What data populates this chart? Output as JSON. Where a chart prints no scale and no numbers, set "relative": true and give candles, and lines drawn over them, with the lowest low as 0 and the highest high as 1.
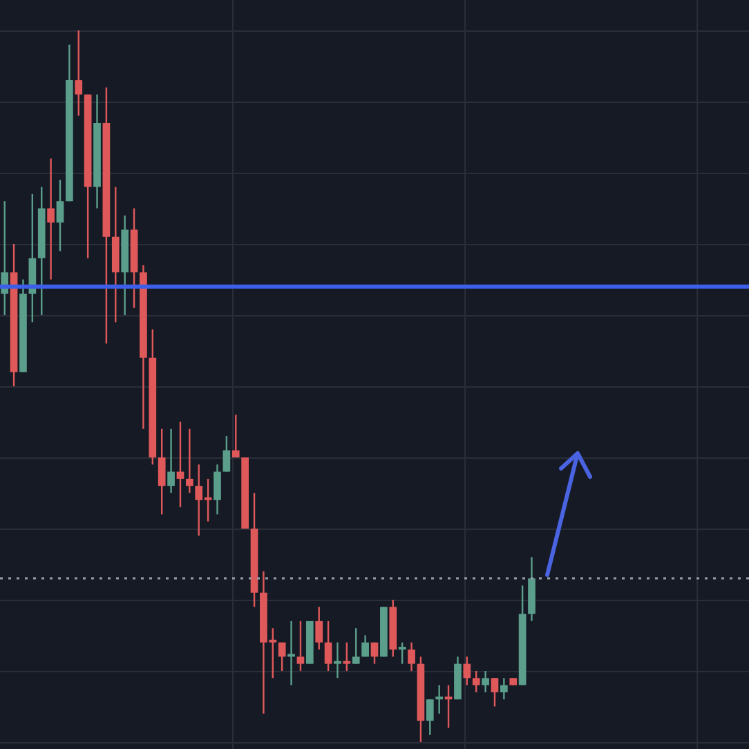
{
  "chart_data": {
    "type": "candlestick",
    "relative": true,
    "grid": true,
    "legend": false,
    "categories": [
      null,
      null,
      null,
      null,
      null,
      null,
      null,
      null,
      null,
      null,
      null,
      null,
      null,
      null,
      null,
      null,
      null,
      null,
      null,
      null,
      null,
      null,
      null,
      null,
      null,
      null,
      null,
      null,
      null,
      null,
      null,
      null,
      null,
      null,
      null,
      null,
      null,
      null,
      null,
      null,
      null,
      null,
      null,
      null,
      null,
      null,
      null,
      null,
      null,
      null,
      null,
      null,
      null,
      null,
      null,
      null,
      null,
      null,
      null,
      null,
      null,
      null,
      null,
      null,
      null,
      null,
      null,
      null,
      null,
      null,
      null,
      null,
      null,
      null,
      null,
      null,
      null,
      null,
      null,
      null,
      null
    ],
    "ohlc": [
      [
        0.63,
        0.76,
        0.6,
        0.66
      ],
      [
        0.66,
        0.7,
        0.5,
        0.52
      ],
      [
        0.52,
        0.65,
        0.52,
        0.63
      ],
      [
        0.63,
        0.77,
        0.59,
        0.68
      ],
      [
        0.68,
        0.78,
        0.6,
        0.75
      ],
      [
        0.75,
        0.82,
        0.65,
        0.73
      ],
      [
        0.73,
        0.79,
        0.69,
        0.76
      ],
      [
        0.76,
        0.98,
        0.76,
        0.93
      ],
      [
        0.93,
        1.0,
        0.88,
        0.91
      ],
      [
        0.91,
        0.91,
        0.68,
        0.78
      ],
      [
        0.78,
        0.91,
        0.75,
        0.87
      ],
      [
        0.87,
        0.92,
        0.56,
        0.71
      ],
      [
        0.71,
        0.78,
        0.59,
        0.66
      ],
      [
        0.66,
        0.74,
        0.6,
        0.72
      ],
      [
        0.72,
        0.75,
        0.61,
        0.66
      ],
      [
        0.66,
        0.67,
        0.44,
        0.54
      ],
      [
        0.54,
        0.58,
        0.39,
        0.4
      ],
      [
        0.4,
        0.44,
        0.32,
        0.36
      ],
      [
        0.36,
        0.44,
        0.35,
        0.38
      ],
      [
        0.38,
        0.45,
        0.33,
        0.37
      ],
      [
        0.37,
        0.44,
        0.35,
        0.36
      ],
      [
        0.36,
        0.39,
        0.29,
        0.34
      ],
      [
        0.34,
        0.37,
        0.31,
        0.34
      ],
      [
        0.34,
        0.39,
        0.32,
        0.38
      ],
      [
        0.38,
        0.43,
        0.38,
        0.41
      ],
      [
        0.41,
        0.46,
        0.4,
        0.4
      ],
      [
        0.4,
        0.4,
        0.3,
        0.3
      ],
      [
        0.3,
        0.35,
        0.19,
        0.21
      ],
      [
        0.21,
        0.24,
        0.04,
        0.14
      ],
      [
        0.14,
        0.16,
        0.09,
        0.14
      ],
      [
        0.14,
        0.14,
        0.1,
        0.12
      ],
      [
        0.12,
        0.17,
        0.08,
        0.12
      ],
      [
        0.12,
        0.17,
        0.1,
        0.11
      ],
      [
        0.11,
        0.17,
        0.11,
        0.17
      ],
      [
        0.17,
        0.19,
        0.13,
        0.14
      ],
      [
        0.14,
        0.17,
        0.1,
        0.11
      ],
      [
        0.11,
        0.14,
        0.09,
        0.11
      ],
      [
        0.11,
        0.14,
        0.1,
        0.11
      ],
      [
        0.11,
        0.16,
        0.11,
        0.12
      ],
      [
        0.12,
        0.15,
        0.12,
        0.14
      ],
      [
        0.14,
        0.14,
        0.11,
        0.12
      ],
      [
        0.12,
        0.19,
        0.12,
        0.19
      ],
      [
        0.19,
        0.2,
        0.12,
        0.13
      ],
      [
        0.13,
        0.14,
        0.11,
        0.13
      ],
      [
        0.13,
        0.14,
        0.1,
        0.11
      ],
      [
        0.11,
        0.12,
        0,
        0.03
      ],
      [
        0.03,
        0.06,
        0.01,
        0.06
      ],
      [
        0.06,
        0.08,
        0.04,
        0.06
      ],
      [
        0.06,
        0.08,
        0.02,
        0.06
      ],
      [
        0.06,
        0.12,
        0.06,
        0.11
      ],
      [
        0.11,
        0.12,
        0.08,
        0.09
      ],
      [
        0.09,
        0.1,
        0.07,
        0.08
      ],
      [
        0.08,
        0.1,
        0.07,
        0.09
      ],
      [
        0.09,
        0.09,
        0.05,
        0.07
      ],
      [
        0.07,
        0.09,
        0.06,
        0.08
      ],
      [
        0.09,
        0.09,
        0.08,
        0.08
      ],
      [
        0.08,
        0.22,
        0.08,
        0.18
      ],
      [
        0.18,
        0.26,
        0.17,
        0.23
      ],
      null,
      null,
      null,
      null,
      null,
      null,
      null,
      null,
      null,
      null,
      null,
      null,
      null,
      null,
      null,
      null,
      null,
      null,
      null,
      null,
      null,
      null,
      null
    ],
    "colors": [
      "#5b9e8b",
      "#e0595a",
      "#5b9e8b",
      "#5b9e8b",
      "#5b9e8b",
      "#e0595a",
      "#5b9e8b",
      "#5b9e8b",
      "#e0595a",
      "#e0595a",
      "#5b9e8b",
      "#e0595a",
      "#e0595a",
      "#5b9e8b",
      "#e0595a",
      "#e0595a",
      "#e0595a",
      "#e0595a",
      "#5b9e8b",
      "#e0595a",
      "#e0595a",
      "#e0595a",
      "#e0595a",
      "#5b9e8b",
      "#5b9e8b",
      "#e0595a",
      "#e0595a",
      "#e0595a",
      "#e0595a",
      "#e0595a",
      "#e0595a",
      "#5b9e8b",
      "#e0595a",
      "#5b9e8b",
      "#e0595a",
      "#e0595a",
      "#5b9e8b",
      "#e0595a",
      "#5b9e8b",
      "#5b9e8b",
      "#e0595a",
      "#5b9e8b",
      "#e0595a",
      "#5b9e8b",
      "#e0595a",
      "#e0595a",
      "#5b9e8b",
      "#5b9e8b",
      "#e0595a",
      "#5b9e8b",
      "#e0595a",
      "#e0595a",
      "#5b9e8b",
      "#e0595a",
      "#5b9e8b",
      "#e0595a",
      "#5b9e8b",
      "#5b9e8b",
      null,
      null,
      null,
      null,
      null,
      null,
      null,
      null,
      null,
      null,
      null,
      null,
      null,
      null,
      null,
      null,
      null,
      null,
      null,
      null,
      null,
      null,
      null
    ],
    "ref_lines": [
      {
        "axis": "y",
        "value": 0.64,
        "color": "#3d5ee6",
        "line_style": "solid"
      },
      {
        "axis": "y",
        "value": 0.23,
        "color": "#9aa0ab",
        "line_style": "dotted"
      }
    ]
  }
}
